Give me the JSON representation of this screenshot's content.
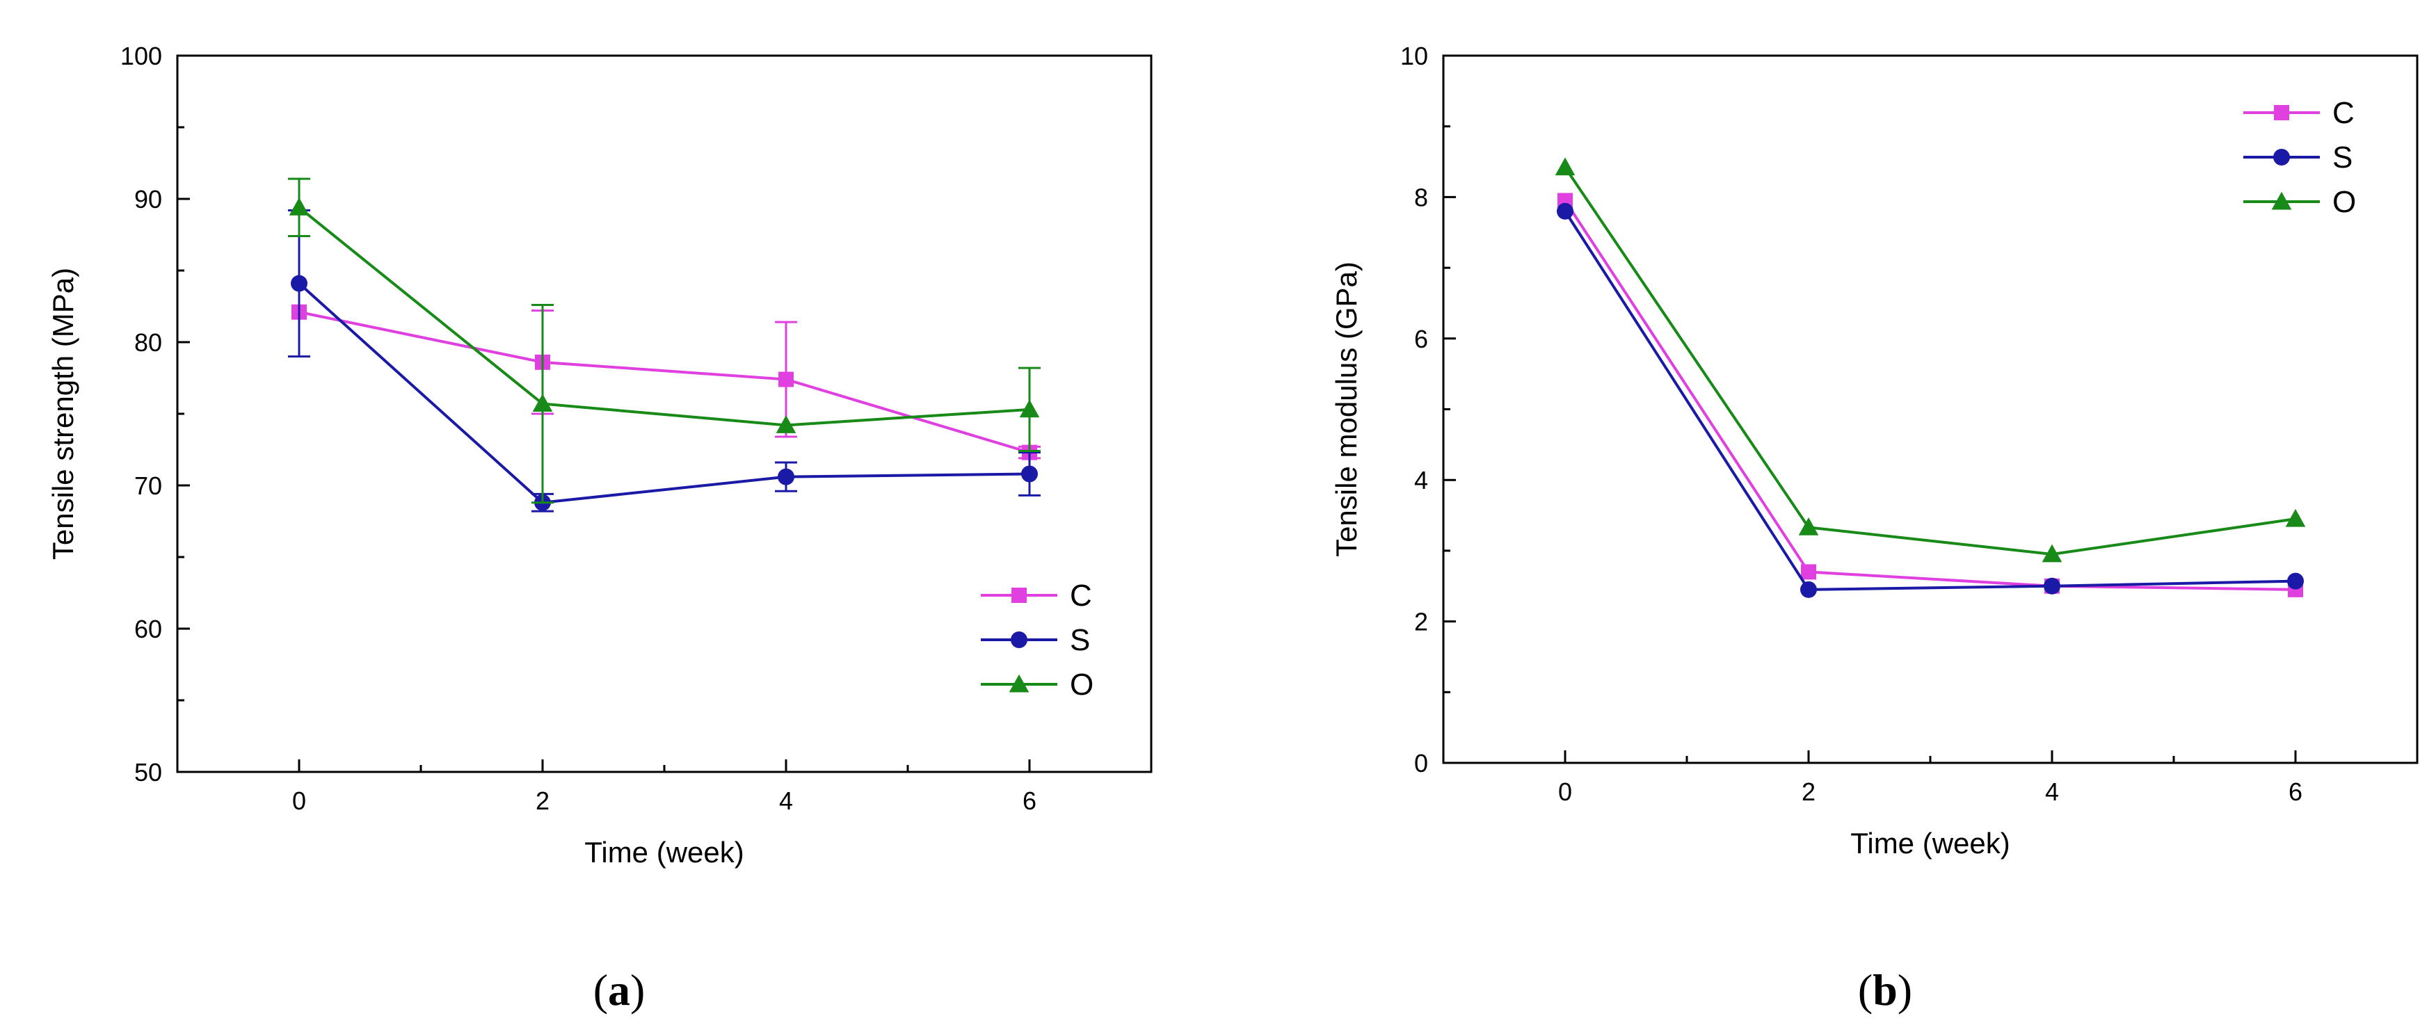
{
  "panels": [
    {
      "label_open": "(",
      "label_letter": "a",
      "label_close": ")"
    },
    {
      "label_open": "(",
      "label_letter": "b",
      "label_close": ")"
    }
  ],
  "chart_data": [
    {
      "type": "line",
      "title": "",
      "xlabel": "Time (week)",
      "ylabel": "Tensile strength (MPa)",
      "xlim": [
        -1,
        7
      ],
      "ylim": [
        50,
        100
      ],
      "xticks": [
        0,
        2,
        4,
        6
      ],
      "yticks": [
        50,
        60,
        70,
        80,
        90,
        100
      ],
      "x": [
        0,
        2,
        4,
        6
      ],
      "grid": false,
      "legend_position": "bottom-right",
      "series": [
        {
          "name": "C",
          "color": "#e040e0",
          "marker": "square",
          "values": [
            82.1,
            78.6,
            77.4,
            72.3
          ],
          "errors": [
            0,
            3.6,
            4.0,
            0.4
          ]
        },
        {
          "name": "S",
          "color": "#1a1aa6",
          "marker": "circle",
          "values": [
            84.1,
            68.8,
            70.6,
            70.8
          ],
          "errors": [
            5.1,
            0.6,
            1.0,
            1.5
          ]
        },
        {
          "name": "O",
          "color": "#178a17",
          "marker": "triangle",
          "values": [
            89.4,
            75.7,
            74.2,
            75.3
          ],
          "errors": [
            2.0,
            6.9,
            0,
            2.9
          ]
        }
      ]
    },
    {
      "type": "line",
      "title": "",
      "xlabel": "Time (week)",
      "ylabel": "Tensile modulus (GPa)",
      "xlim": [
        -1,
        7
      ],
      "ylim": [
        0,
        10
      ],
      "xticks": [
        0,
        2,
        4,
        6
      ],
      "yticks": [
        0,
        2,
        4,
        6,
        8,
        10
      ],
      "x": [
        0,
        2,
        4,
        6
      ],
      "grid": false,
      "legend_position": "top-right",
      "series": [
        {
          "name": "C",
          "color": "#e040e0",
          "marker": "square",
          "values": [
            7.95,
            2.7,
            2.5,
            2.45
          ],
          "errors": [
            0,
            0,
            0,
            0
          ]
        },
        {
          "name": "S",
          "color": "#1a1aa6",
          "marker": "circle",
          "values": [
            7.8,
            2.45,
            2.5,
            2.57
          ],
          "errors": [
            0,
            0,
            0,
            0
          ]
        },
        {
          "name": "O",
          "color": "#178a17",
          "marker": "triangle",
          "values": [
            8.42,
            3.33,
            2.95,
            3.45
          ],
          "errors": [
            0,
            0,
            0,
            0
          ]
        }
      ]
    }
  ]
}
